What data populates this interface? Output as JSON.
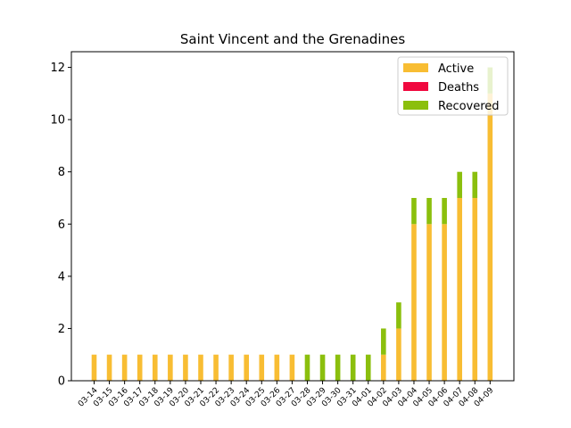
{
  "chart_data": {
    "type": "bar",
    "stacked": true,
    "title": "Saint Vincent and the Grenadines",
    "xlabel": "",
    "ylabel": "",
    "ylim": [
      0,
      12.6
    ],
    "yticks": [
      0,
      2,
      4,
      6,
      8,
      10,
      12
    ],
    "categories": [
      "03-14",
      "03-15",
      "03-16",
      "03-17",
      "03-18",
      "03-19",
      "03-20",
      "03-21",
      "03-22",
      "03-23",
      "03-24",
      "03-25",
      "03-26",
      "03-27",
      "03-28",
      "03-29",
      "03-30",
      "03-31",
      "04-01",
      "04-02",
      "04-03",
      "04-04",
      "04-05",
      "04-06",
      "04-07",
      "04-08",
      "04-09"
    ],
    "series": [
      {
        "name": "Active",
        "color": "#f8bd33",
        "values": [
          1,
          1,
          1,
          1,
          1,
          1,
          1,
          1,
          1,
          1,
          1,
          1,
          1,
          1,
          0,
          0,
          0,
          0,
          0,
          1,
          2,
          6,
          6,
          6,
          7,
          7,
          11
        ]
      },
      {
        "name": "Deaths",
        "color": "#f0093f",
        "values": [
          0,
          0,
          0,
          0,
          0,
          0,
          0,
          0,
          0,
          0,
          0,
          0,
          0,
          0,
          0,
          0,
          0,
          0,
          0,
          0,
          0,
          0,
          0,
          0,
          0,
          0,
          0
        ]
      },
      {
        "name": "Recovered",
        "color": "#8bbf0d",
        "values": [
          0,
          0,
          0,
          0,
          0,
          0,
          0,
          0,
          0,
          0,
          0,
          0,
          0,
          0,
          1,
          1,
          1,
          1,
          1,
          1,
          1,
          1,
          1,
          1,
          1,
          1,
          1
        ]
      }
    ],
    "legend": "top-right",
    "grid": false
  }
}
